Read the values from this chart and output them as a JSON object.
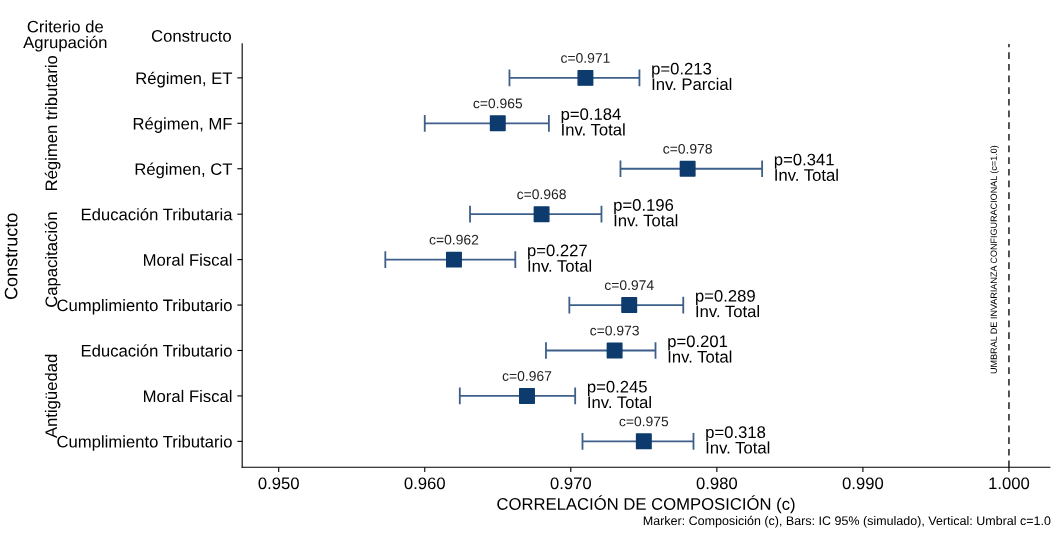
{
  "chart_data": {
    "type": "scatter",
    "orientation": "horizontal",
    "xlabel": "CORRELACIÓN DE COMPOSICIÓN (c)",
    "ylabel": "Constructo",
    "categories": [
      "Régimen, ET",
      "Régimen, MF",
      "Régimen, CT",
      "Educación Tributaria",
      "Moral Fiscal",
      "Cumplimiento Tributario",
      "Educación Tributario",
      "Moral Fiscal",
      "Cumplimiento Tributario"
    ],
    "series": [
      {
        "color": "#0d3b6e",
        "marker": "square",
        "values": [
          0.971,
          0.965,
          0.978,
          0.968,
          0.962,
          0.974,
          0.973,
          0.967,
          0.975
        ],
        "errors": [
          [
            0.9658,
            0.9747
          ],
          [
            0.96,
            0.9685
          ],
          [
            0.9734,
            0.9831
          ],
          [
            0.9631,
            0.9721
          ],
          [
            0.9573,
            0.9662
          ],
          [
            0.9699,
            0.9777
          ],
          [
            0.9683,
            0.9758
          ],
          [
            0.9624,
            0.9703
          ],
          [
            0.9708,
            0.9784
          ]
        ],
        "value_labels": [
          "c=0.971",
          "c=0.965",
          "c=0.978",
          "c=0.968",
          "c=0.962",
          "c=0.974",
          "c=0.973",
          "c=0.967",
          "c=0.975"
        ]
      }
    ],
    "xlim": [
      0.9475,
      1.0028
    ],
    "xticks": [
      {
        "value": 0.95,
        "label": "0.950"
      },
      {
        "value": 0.96,
        "label": "0.960"
      },
      {
        "value": 0.97,
        "label": "0.970"
      },
      {
        "value": 0.98,
        "label": "0.980"
      },
      {
        "value": 0.99,
        "label": "0.990"
      },
      {
        "value": 1.0,
        "label": "1.000"
      }
    ],
    "ref_lines": [
      {
        "axis": "x",
        "value": 1.0,
        "label": "UMBRAL DE INVARIANZA CONFIGURACIONAL (c=1.0)",
        "color": "#333333",
        "line_style": "dashed"
      }
    ],
    "grid": false,
    "legend": false,
    "annotations": [
      "p=0.213\nInv. Parcial",
      "p=0.184\nInv. Total",
      "p=0.341\nInv. Total",
      "p=0.196\nInv. Total",
      "p=0.227\nInv. Total",
      "p=0.289\nInv. Total",
      "p=0.201\nInv. Total",
      "p=0.245\nInv. Total",
      "p=0.318\nInv. Total",
      "Criterio de\nAgrupación",
      "Constructo",
      "Régimen tributario",
      "Capacitación",
      "Antigüedad",
      "Marker: Composición (c), Bars: IC 95% (simulado), Vertical: Umbral c=1.0"
    ]
  }
}
